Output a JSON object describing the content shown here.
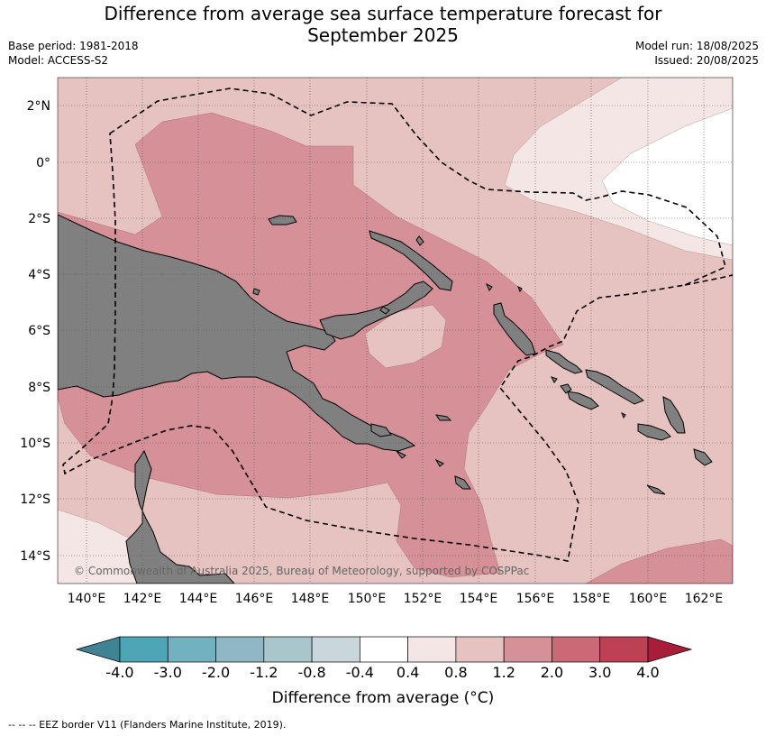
{
  "title_line1": "Difference from average sea surface temperature forecast for",
  "title_line2": "September 2025",
  "base_period": "Base period: 1981-2018",
  "model": "Model: ACCESS-S2",
  "model_run": "Model run: 18/08/2025",
  "issued": "Issued: 20/08/2025",
  "copyright": "© Commonwealth of Australia 2025, Bureau of Meteorology, supported by COSPPac",
  "lat_labels": [
    "2°N",
    "0°",
    "2°S",
    "4°S",
    "6°S",
    "8°S",
    "10°S",
    "12°S",
    "14°S"
  ],
  "lon_labels": [
    "140°E",
    "142°E",
    "144°E",
    "146°E",
    "148°E",
    "150°E",
    "152°E",
    "154°E",
    "156°E",
    "158°E",
    "160°E",
    "162°E"
  ],
  "colorbar": {
    "ticks": [
      "-4.0",
      "-3.0",
      "-2.0",
      "-1.2",
      "-0.8",
      "-0.4",
      "0.4",
      "0.8",
      "1.2",
      "2.0",
      "3.0",
      "4.0"
    ],
    "colors": [
      "#3f8394",
      "#4ea5b6",
      "#72b1c0",
      "#8fb7c4",
      "#a8c6cc",
      "#c9d6dc",
      "#ffffff",
      "#f4e6e4",
      "#e6c3c0",
      "#d59098",
      "#cb6a76",
      "#bd4152",
      "#a81e3a"
    ],
    "label": "Difference from average (°C)"
  },
  "legend": "--  --  -- EEZ border V11 (Flanders Marine Institute, 2019).",
  "colors": {
    "anom_04_08": "#f4e6e4",
    "anom_08_12": "#e6c3c0",
    "anom_12_20": "#d59098",
    "land": "#808080",
    "gridline": "#555555"
  }
}
